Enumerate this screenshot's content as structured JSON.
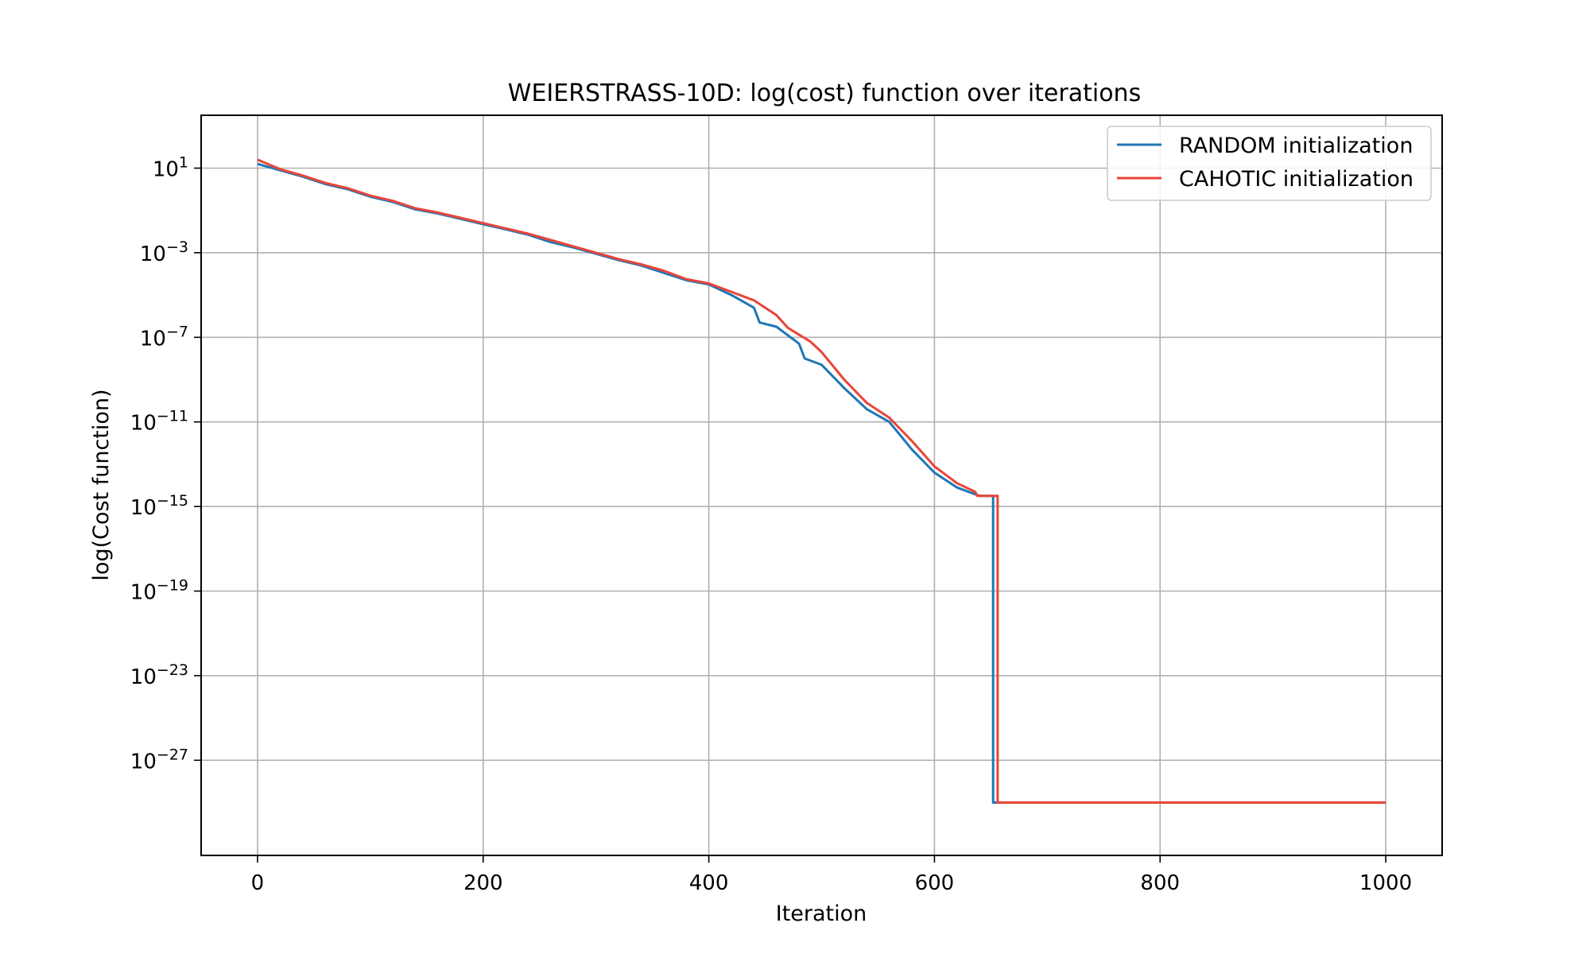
{
  "chart_data": {
    "type": "line",
    "title": "WEIERSTRASS-10D: log(cost) function over iterations",
    "xlabel": "Iteration",
    "ylabel": "log(Cost function)",
    "xlim": [
      -50,
      1050
    ],
    "ylim_log10": [
      -31.5,
      3.5
    ],
    "yscale": "log",
    "grid": true,
    "legend_position": "top-right",
    "x_ticks": [
      0,
      200,
      400,
      600,
      800,
      1000
    ],
    "y_ticks_exponent": [
      1,
      -3,
      -7,
      -11,
      -15,
      -19,
      -23,
      -27
    ],
    "y_tick_base": "10",
    "series": [
      {
        "name": "RANDOM initialization",
        "color": "#1f77b4",
        "points_log10": [
          [
            0,
            1.2
          ],
          [
            20,
            0.9
          ],
          [
            40,
            0.6
          ],
          [
            60,
            0.25
          ],
          [
            80,
            0.0
          ],
          [
            100,
            -0.35
          ],
          [
            120,
            -0.6
          ],
          [
            140,
            -0.95
          ],
          [
            160,
            -1.15
          ],
          [
            180,
            -1.4
          ],
          [
            200,
            -1.65
          ],
          [
            220,
            -1.9
          ],
          [
            240,
            -2.15
          ],
          [
            260,
            -2.5
          ],
          [
            280,
            -2.75
          ],
          [
            300,
            -3.05
          ],
          [
            320,
            -3.35
          ],
          [
            340,
            -3.6
          ],
          [
            360,
            -3.95
          ],
          [
            380,
            -4.3
          ],
          [
            400,
            -4.5
          ],
          [
            420,
            -5.0
          ],
          [
            440,
            -5.6
          ],
          [
            445,
            -6.3
          ],
          [
            460,
            -6.5
          ],
          [
            480,
            -7.3
          ],
          [
            485,
            -8.0
          ],
          [
            500,
            -8.3
          ],
          [
            520,
            -9.4
          ],
          [
            540,
            -10.4
          ],
          [
            560,
            -11.0
          ],
          [
            580,
            -12.3
          ],
          [
            600,
            -13.4
          ],
          [
            620,
            -14.1
          ],
          [
            640,
            -14.5
          ],
          [
            652,
            -14.5
          ],
          [
            652,
            -29.0
          ],
          [
            1000,
            -29.0
          ]
        ]
      },
      {
        "name": "CAHOTIC initialization",
        "color": "#e8453a",
        "points_log10": [
          [
            0,
            1.4
          ],
          [
            20,
            0.95
          ],
          [
            40,
            0.65
          ],
          [
            60,
            0.3
          ],
          [
            80,
            0.05
          ],
          [
            100,
            -0.3
          ],
          [
            120,
            -0.55
          ],
          [
            140,
            -0.9
          ],
          [
            160,
            -1.1
          ],
          [
            180,
            -1.35
          ],
          [
            200,
            -1.6
          ],
          [
            220,
            -1.85
          ],
          [
            240,
            -2.1
          ],
          [
            260,
            -2.4
          ],
          [
            280,
            -2.7
          ],
          [
            300,
            -3.0
          ],
          [
            320,
            -3.3
          ],
          [
            340,
            -3.55
          ],
          [
            360,
            -3.85
          ],
          [
            380,
            -4.25
          ],
          [
            400,
            -4.45
          ],
          [
            420,
            -4.85
          ],
          [
            440,
            -5.25
          ],
          [
            460,
            -5.95
          ],
          [
            470,
            -6.55
          ],
          [
            490,
            -7.2
          ],
          [
            500,
            -7.7
          ],
          [
            520,
            -9.0
          ],
          [
            540,
            -10.1
          ],
          [
            560,
            -10.8
          ],
          [
            580,
            -11.9
          ],
          [
            600,
            -13.1
          ],
          [
            620,
            -13.9
          ],
          [
            636,
            -14.3
          ],
          [
            638,
            -14.5
          ],
          [
            656,
            -14.5
          ],
          [
            656,
            -29.0
          ],
          [
            1000,
            -29.0
          ]
        ]
      }
    ]
  }
}
